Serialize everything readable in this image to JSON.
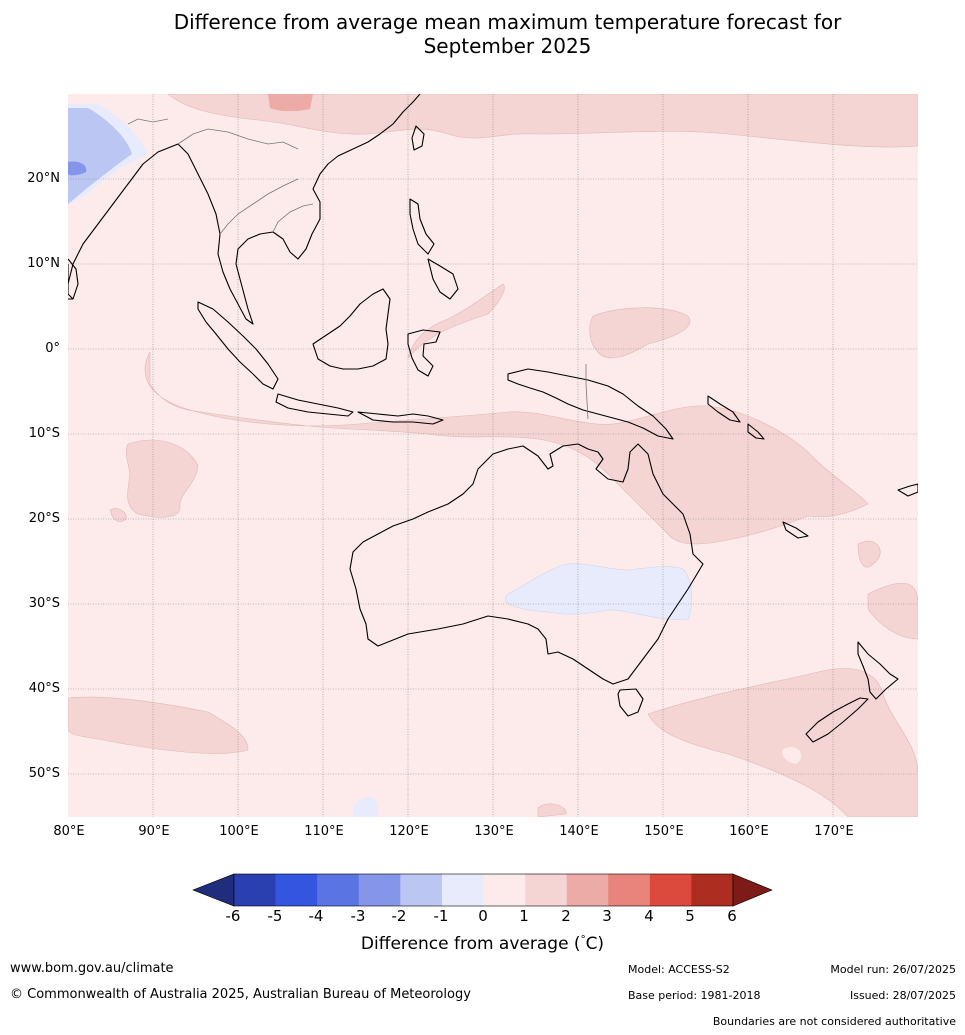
{
  "title_line1": "Difference from average mean maximum temperature forecast for",
  "title_line2": "September 2025",
  "lat_labels": [
    "20°N",
    "10°N",
    "0°",
    "10°S",
    "20°S",
    "30°S",
    "40°S",
    "50°S"
  ],
  "lon_labels": [
    "80°E",
    "90°E",
    "100°E",
    "110°E",
    "120°E",
    "130°E",
    "140°E",
    "150°E",
    "160°E",
    "170°E"
  ],
  "colorbar": {
    "title": "Difference from average (",
    "title_unit": "°",
    "title_end": "C)",
    "ticks": [
      "-6",
      "-5",
      "-4",
      "-3",
      "-2",
      "-1",
      "0",
      "1",
      "2",
      "3",
      "4",
      "5",
      "6"
    ],
    "colors": {
      "below_min": "#1f2d7c",
      "bins": [
        "#2a3fb0",
        "#3355e0",
        "#5a74e3",
        "#8596ea",
        "#bcc6f3",
        "#e7ebfb",
        "#fcebea",
        "#f5d4d4",
        "#edaba7",
        "#e8847c",
        "#dc4a3e",
        "#ae2d21"
      ],
      "above_max": "#7e1a18"
    }
  },
  "map_colors": {
    "anomaly_0_1": "#fcebea",
    "anomaly_1_2": "#f5d4d4",
    "anomaly_2_3": "#edaba7",
    "anomaly_m1_0": "#e7ebfb",
    "anomaly_m2_m1": "#bcc6f3",
    "anomaly_m3_m2": "#8596ea"
  },
  "footer": {
    "website": "www.bom.gov.au/climate",
    "copyright": "© Commonwealth of Australia 2025, Australian Bureau of Meteorology",
    "model": "Model: ACCESS-S2",
    "base_period": "Base period: 1981-2018",
    "model_run": "Model run: 26/07/2025",
    "issued": "Issued: 28/07/2025",
    "boundaries_note": "Boundaries are not considered authoritative"
  }
}
